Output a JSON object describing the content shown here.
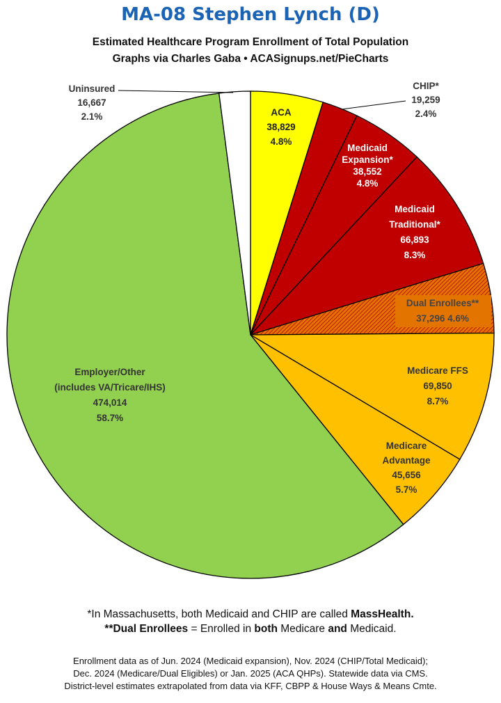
{
  "header": {
    "title": "MA-08 Stephen Lynch (D)",
    "subtitle": "Estimated Healthcare Program Enrollment of Total Population",
    "credit": "Graphs via Charles Gaba  •  ACASignups.net/PieCharts"
  },
  "chart_data": {
    "type": "pie",
    "title": "MA-08 Stephen Lynch (D)",
    "start": "top, clockwise",
    "slices": [
      {
        "label": "ACA",
        "value": 38829,
        "percent": 4.8,
        "value_text": "38,829",
        "percent_text": "4.8%",
        "color": "#ffff00"
      },
      {
        "label": "CHIP*",
        "value": 19259,
        "percent": 2.4,
        "value_text": "19,259",
        "percent_text": "2.4%",
        "color": "#c00000"
      },
      {
        "label": "Medicaid Expansion*",
        "value": 38552,
        "percent": 4.8,
        "value_text": "38,552",
        "percent_text": "4.8%",
        "color": "#c00000"
      },
      {
        "label": "Medicaid Traditional*",
        "value": 66893,
        "percent": 8.3,
        "value_text": "66,893",
        "percent_text": "8.3%",
        "color": "#c00000"
      },
      {
        "label": "Dual Enrollees**",
        "value": 37296,
        "percent": 4.6,
        "value_text": "37,296",
        "percent_text": "4.6%",
        "color": "#e37400",
        "pattern": "hatched"
      },
      {
        "label": "Medicare FFS",
        "value": 69850,
        "percent": 8.7,
        "value_text": "69,850",
        "percent_text": "8.7%",
        "color": "#ffc000"
      },
      {
        "label": "Medicare Advantage",
        "value": 45656,
        "percent": 5.7,
        "value_text": "45,656",
        "percent_text": "5.7%",
        "color": "#ffc000"
      },
      {
        "label": "Employer/Other (includes VA/Tricare/IHS)",
        "value": 474014,
        "percent": 58.7,
        "value_text": "474,014",
        "percent_text": "58.7%",
        "color": "#92d050"
      },
      {
        "label": "Uninsured",
        "value": 16667,
        "percent": 2.1,
        "value_text": "16,667",
        "percent_text": "2.1%",
        "color": "#ffffff"
      }
    ],
    "labels": {
      "aca": [
        "ACA",
        "38,829",
        "4.8%"
      ],
      "chip": [
        "CHIP*",
        "19,259",
        "2.4%"
      ],
      "exp": [
        "Medicaid",
        "Expansion*",
        "38,552",
        "4.8%"
      ],
      "trad": [
        "Medicaid",
        "Traditional*",
        "66,893",
        "8.3%"
      ],
      "dual": [
        "Dual Enrollees**",
        "37,296 4.6%"
      ],
      "ffs": [
        "Medicare FFS",
        "69,850",
        "8.7%"
      ],
      "adv": [
        "Medicare",
        "Advantage",
        "45,656",
        "5.7%"
      ],
      "emp": [
        "Employer/Other",
        "(includes VA/Tricare/IHS)",
        "474,014",
        "58.7%"
      ],
      "uni": [
        "Uninsured",
        "16,667",
        "2.1%"
      ]
    }
  },
  "footnotes": {
    "fn1_plain": "*In Massachusetts, both Medicaid and CHIP are called ",
    "fn1_bold": "MassHealth.",
    "fn2_p1": "**Dual Enrollees",
    "fn2_p2": " = Enrolled in ",
    "fn2_p3": "both",
    "fn2_p4": " Medicare ",
    "fn2_p5": "and",
    "fn2_p6": " Medicaid."
  },
  "notes": [
    "Enrollment data as of Jun. 2024 (Medicaid expansion), Nov. 2024 (CHIP/Total Medicaid);",
    "Dec. 2024 (Medicare/Dual Eligibles) or Jan. 2025 (ACA QHPs). Statewide data via CMS.",
    "District-level estimates extrapolated from data via KFF, CBPP & House Ways & Means Cmte."
  ]
}
